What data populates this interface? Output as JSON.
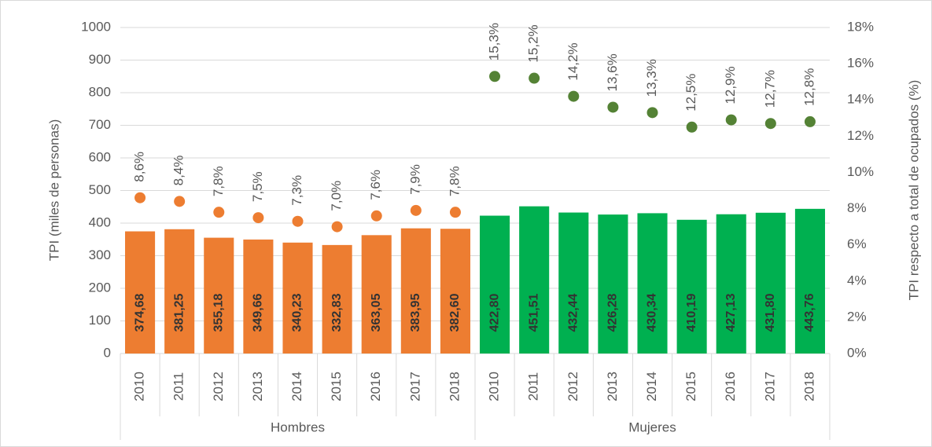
{
  "chart_data": {
    "type": "bar",
    "ylabel": "TPI (miles de personas)",
    "y2label": "TPI respecto a total de ocupados (%)",
    "categories": [
      "2010",
      "2011",
      "2012",
      "2013",
      "2014",
      "2015",
      "2016",
      "2017",
      "2018"
    ],
    "ylim": [
      0,
      1000
    ],
    "yticks": [
      0,
      100,
      200,
      300,
      400,
      500,
      600,
      700,
      800,
      900,
      1000
    ],
    "y2lim": [
      0,
      18
    ],
    "y2ticks": [
      {
        "value": 0,
        "label": "0%"
      },
      {
        "value": 2,
        "label": "2%"
      },
      {
        "value": 4,
        "label": "4%"
      },
      {
        "value": 6,
        "label": "6%"
      },
      {
        "value": 8,
        "label": "8%"
      },
      {
        "value": 10,
        "label": "10%"
      },
      {
        "value": 12,
        "label": "12%"
      },
      {
        "value": 14,
        "label": "14%"
      },
      {
        "value": 16,
        "label": "16%"
      },
      {
        "value": 18,
        "label": "18%"
      }
    ],
    "grid": true,
    "series": [
      {
        "name": "Hombres",
        "color": "#ed7d31",
        "rate_color": "#ed7d31",
        "values": [
          374.68,
          381.25,
          355.18,
          349.66,
          340.23,
          332.83,
          363.05,
          383.95,
          382.6
        ],
        "value_labels": [
          "374,68",
          "381,25",
          "355,18",
          "349,66",
          "340,23",
          "332,83",
          "363,05",
          "383,95",
          "382,60"
        ],
        "rates": [
          8.6,
          8.4,
          7.8,
          7.5,
          7.3,
          7.0,
          7.6,
          7.9,
          7.8
        ],
        "rate_labels": [
          "8,6%",
          "8,4%",
          "7,8%",
          "7,5%",
          "7,3%",
          "7,0%",
          "7,6%",
          "7,9%",
          "7,8%"
        ]
      },
      {
        "name": "Mujeres",
        "color": "#00b050",
        "rate_color": "#548235",
        "values": [
          422.8,
          451.51,
          432.44,
          426.28,
          430.34,
          410.19,
          427.13,
          431.8,
          443.76
        ],
        "value_labels": [
          "422,80",
          "451,51",
          "432,44",
          "426,28",
          "430,34",
          "410,19",
          "427,13",
          "431,80",
          "443,76"
        ],
        "rates": [
          15.3,
          15.2,
          14.2,
          13.6,
          13.3,
          12.5,
          12.9,
          12.7,
          12.8
        ],
        "rate_labels": [
          "15,3%",
          "15,2%",
          "14,2%",
          "13,6%",
          "13,3%",
          "12,5%",
          "12,9%",
          "12,7%",
          "12,8%"
        ]
      }
    ]
  }
}
